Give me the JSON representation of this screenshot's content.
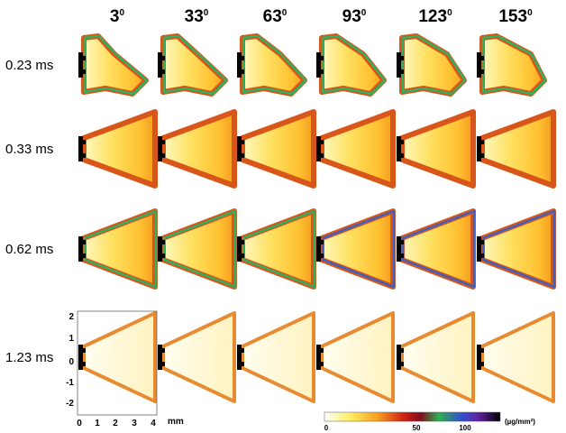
{
  "columns": [
    {
      "angle": "3",
      "sup": "0"
    },
    {
      "angle": "33",
      "sup": "0"
    },
    {
      "angle": "63",
      "sup": "0"
    },
    {
      "angle": "93",
      "sup": "0"
    },
    {
      "angle": "123",
      "sup": "0"
    },
    {
      "angle": "153",
      "sup": "0"
    }
  ],
  "rows": [
    "0.23 ms",
    "0.33 ms",
    "0.62 ms",
    "1.23 ms"
  ],
  "axes": {
    "yticks": [
      "2",
      "1",
      "0",
      "-1",
      "-2"
    ],
    "xticks": [
      "0",
      "1",
      "2",
      "3",
      "4"
    ],
    "xunit": "mm"
  },
  "colorbar": {
    "ticks": [
      "0",
      "50",
      "100"
    ],
    "unit": "(µg/mm²)"
  }
}
